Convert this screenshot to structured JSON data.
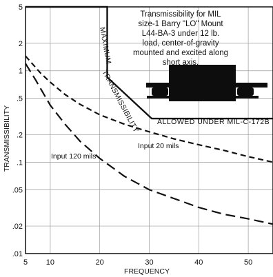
{
  "chart_data": {
    "type": "line",
    "annotation": "Transmissibility for MIL size-1 Barry \"LO\" Mount L44-BA-3 under 12 lb. load, center-of-gravity mounted and excited along short axis.",
    "xlabel": "FREQUENCY",
    "ylabel": "TRANSMISSIBILITY",
    "xlim": [
      5,
      55
    ],
    "ylim": [
      0.01,
      5
    ],
    "yscale": "log",
    "x_ticks": [
      5,
      10,
      20,
      30,
      40,
      50
    ],
    "x_tick_labels": [
      "5",
      "10",
      "20",
      "30",
      "40",
      "50"
    ],
    "y_ticks": [
      5,
      2,
      1,
      0.5,
      0.2,
      0.1,
      0.05,
      0.02,
      0.01
    ],
    "y_tick_labels": [
      "5",
      "2",
      "1",
      ".5",
      ".2",
      ".1",
      ".05",
      ".02",
      ".01"
    ],
    "grid": true,
    "limit_line": {
      "label_upper": "MAXIMUM",
      "label_diag": "TRANSMISSIBILITY",
      "label_lower": "ALLOWED UNDER MIL-C-172B",
      "x": [
        5,
        21.5,
        21.5,
        30.5,
        55
      ],
      "y": [
        5,
        5,
        0.85,
        0.3,
        0.3
      ]
    },
    "series": [
      {
        "name": "Input 20 mils",
        "style": "short-dash",
        "x": [
          5,
          8,
          10,
          13,
          16,
          20,
          25,
          30,
          35,
          40,
          45,
          50,
          55
        ],
        "y": [
          1.45,
          0.95,
          0.75,
          0.55,
          0.43,
          0.33,
          0.26,
          0.215,
          0.18,
          0.155,
          0.135,
          0.115,
          0.1
        ]
      },
      {
        "name": "Input 120 mils",
        "style": "long-dash",
        "x": [
          5,
          7,
          10,
          13,
          16,
          20,
          25,
          30,
          35,
          40,
          45,
          50,
          55
        ],
        "y": [
          1.2,
          0.8,
          0.42,
          0.26,
          0.17,
          0.11,
          0.07,
          0.05,
          0.04,
          0.032,
          0.027,
          0.024,
          0.021
        ]
      }
    ]
  }
}
